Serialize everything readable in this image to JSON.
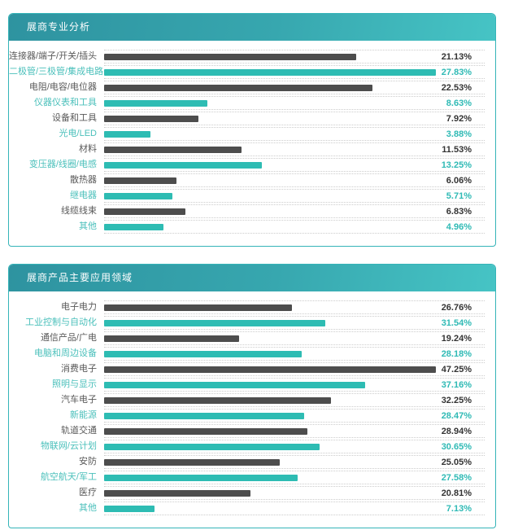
{
  "colors": {
    "bar_dark": "#4d4d4d",
    "bar_teal": "#2ebcb3",
    "label_dark": "#595959",
    "label_teal": "#4bc0bb",
    "value_dark": "#333333",
    "value_teal": "#2fbab5",
    "panel_border": "#35b4b8",
    "header_gradient_start": "#2e93a0",
    "header_gradient_end": "#46c4c5",
    "dotted_line": "#cccccc"
  },
  "chart_data": [
    {
      "type": "bar",
      "orientation": "horizontal",
      "title": "展商专业分析",
      "unit": "%",
      "legend": "none",
      "grid": "dotted row separators",
      "categories": [
        "连接器/端子/开关/插头",
        "二极管/三极管/集成电路",
        "电阻/电容/电位器",
        "仪器仪表和工具",
        "设备和工具",
        "光电/LED",
        "材料",
        "变压器/线圈/电感",
        "散热器",
        "继电器",
        "线缆线束",
        "其他"
      ],
      "values": [
        21.13,
        27.83,
        22.53,
        8.63,
        7.92,
        3.88,
        11.53,
        13.25,
        6.06,
        5.71,
        6.83,
        4.96
      ],
      "value_labels": [
        "21.13%",
        "27.83%",
        "22.53%",
        "8.63%",
        "7.92%",
        "3.88%",
        "11.53%",
        "13.25%",
        "6.06%",
        "5.71%",
        "6.83%",
        "4.96%"
      ],
      "bar_color_pattern": [
        "dark",
        "teal"
      ]
    },
    {
      "type": "bar",
      "orientation": "horizontal",
      "title": "展商产品主要应用领域",
      "unit": "%",
      "legend": "none",
      "grid": "dotted row separators",
      "categories": [
        "电子电力",
        "工业控制与自动化",
        "通信产品/广电",
        "电脑和周边设备",
        "消费电子",
        "照明与显示",
        "汽车电子",
        "新能源",
        "轨道交通",
        "物联网/云计划",
        "安防",
        "航空航天/军工",
        "医疗",
        "其他"
      ],
      "values": [
        26.76,
        31.54,
        19.24,
        28.18,
        47.25,
        37.16,
        32.25,
        28.47,
        28.94,
        30.65,
        25.05,
        27.58,
        20.81,
        7.13
      ],
      "value_labels": [
        "26.76%",
        "31.54%",
        "19.24%",
        "28.18%",
        "47.25%",
        "37.16%",
        "32.25%",
        "28.47%",
        "28.94%",
        "30.65%",
        "25.05%",
        "27.58%",
        "20.81%",
        "7.13%"
      ],
      "bar_color_pattern": [
        "dark",
        "teal"
      ]
    }
  ]
}
